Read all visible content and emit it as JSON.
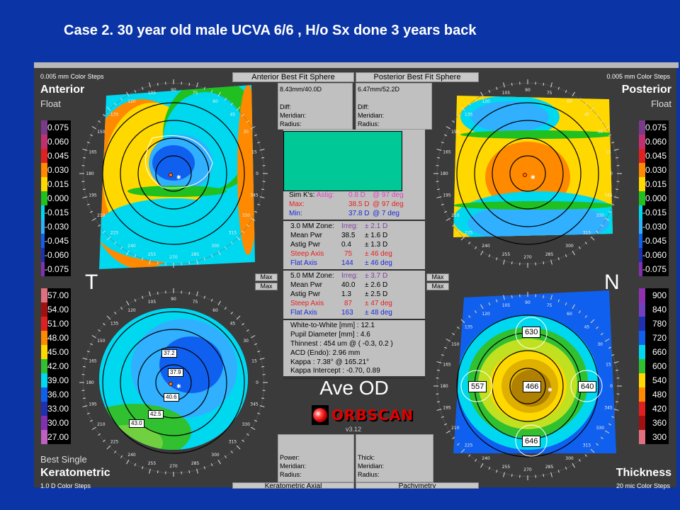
{
  "title": "Case 2. 30 year old male UCVA 6/6 , H/o Sx done 3 years back",
  "anterior": {
    "steps": "0.005 mm Color Steps",
    "name": "Anterior",
    "sub": "Float",
    "scale": [
      "0.075",
      "0.060",
      "0.045",
      "0.030",
      "0.015",
      "0.000",
      "-0.015",
      "-0.030",
      "-0.045",
      "-0.060",
      "-0.075"
    ],
    "colors": [
      "#7a3a8a",
      "#c03070",
      "#e02020",
      "#ff8a00",
      "#ffd800",
      "#20c020",
      "#00d8f0",
      "#30b0ff",
      "#1060f0",
      "#2030b0",
      "#8030b0"
    ]
  },
  "posterior": {
    "steps": "0.005 mm Color Steps",
    "name": "Posterior",
    "sub": "Float",
    "scale": [
      "0.075",
      "0.060",
      "0.045",
      "0.030",
      "0.015",
      "0.000",
      "-0.015",
      "-0.030",
      "-0.045",
      "-0.060",
      "-0.075"
    ],
    "colors": [
      "#7a3a8a",
      "#c03070",
      "#e02020",
      "#ff8a00",
      "#ffd800",
      "#20c020",
      "#00d8f0",
      "#30b0ff",
      "#1060f0",
      "#2030b0",
      "#8030b0"
    ]
  },
  "keratometric": {
    "steps": "1.0 D Color Steps",
    "name": "Keratometric",
    "sub": "Best Single",
    "scale": [
      "57.00",
      "54.00",
      "51.00",
      "48.00",
      "45.00",
      "42.00",
      "39.00",
      "36.00",
      "33.00",
      "30.00",
      "27.00"
    ],
    "colors": [
      "#e07080",
      "#a01010",
      "#e02020",
      "#ff8a00",
      "#ffd800",
      "#30c030",
      "#00d8f0",
      "#1060f0",
      "#2030b0",
      "#8030b0",
      "#c060c0"
    ],
    "labels": [
      "37.2",
      "37.9",
      "40.6",
      "42.5",
      "43.0"
    ]
  },
  "thickness": {
    "steps": "20 mic Color Steps",
    "name": "Thickness",
    "scale": [
      "900",
      "840",
      "780",
      "720",
      "660",
      "600",
      "540",
      "480",
      "420",
      "360",
      "300"
    ],
    "colors": [
      "#9030b0",
      "#7040c0",
      "#2030b0",
      "#1060f0",
      "#00d8f0",
      "#30c030",
      "#ffd800",
      "#ff8a00",
      "#e02020",
      "#a01010",
      "#e07080"
    ],
    "labels": [
      "630",
      "557",
      "466",
      "640",
      "646"
    ]
  },
  "side_labels": {
    "temporal": "T",
    "nasal": "N"
  },
  "dial_labels": [
    "0",
    "15",
    "30",
    "45",
    "60",
    "75",
    "90",
    "105",
    "120",
    "135",
    "150",
    "165",
    "180",
    "195",
    "210",
    "225",
    "240",
    "255",
    "270",
    "285",
    "300",
    "315",
    "330",
    "345"
  ],
  "best_fit": {
    "anterior_label": "Anterior Best Fit Sphere",
    "posterior_label": "Posterior Best Fit Sphere",
    "anterior_value": "8.43mm/40.0D",
    "posterior_value": "6.47mm/52.2D",
    "diff": "Diff:",
    "meridian": "Meridian:",
    "radius": "Radius:"
  },
  "center_panel": {
    "simk": {
      "label": "Sim K's:",
      "astig": "Astig:",
      "astig_val": "0.8 D",
      "astig_deg": "@ 97 deg",
      "max": "Max:",
      "max_val": "38.5 D",
      "max_deg": "@ 97 deg",
      "min": "Min:",
      "min_val": "37.8 D",
      "min_deg": "@ 7 deg"
    },
    "zone3": {
      "label": "3.0 MM Zone:",
      "irreg": "Irreg:",
      "irreg_val": "± 2.1 D",
      "mean": "Mean Pwr",
      "mean_val": "38.5",
      "mean_sd": "± 1.6 D",
      "astig": "Astig Pwr",
      "astig_val": "0.4",
      "astig_sd": "± 1.3 D",
      "steep": "Steep Axis",
      "steep_val": "75",
      "steep_sd": "± 46 deg",
      "flat": "Flat Axis",
      "flat_val": "144",
      "flat_sd": "± 46 deg"
    },
    "zone5": {
      "label": "5.0 MM Zone:",
      "irreg": "Irreg:",
      "irreg_val": "± 3.7 D",
      "mean": "Mean Pwr",
      "mean_val": "40.0",
      "mean_sd": "± 2.6 D",
      "astig": "Astig Pwr",
      "astig_val": "1.3",
      "astig_sd": "± 2.5 D",
      "steep": "Steep Axis",
      "steep_val": "87",
      "steep_sd": "± 47 deg",
      "flat": "Flat Axis",
      "flat_val": "163",
      "flat_sd": "± 48 deg"
    },
    "misc": [
      "White-to-White [mm] : 12.1",
      "Pupil Diameter [mm] :  4.6",
      "Thinnest : 454 um @ ( -0.3, 0.2 )",
      "ACD (Endo): 2.96 mm",
      "Kappa : 7.38° @ 165.21°",
      "Kappa Intercept : -0.70, 0.89"
    ]
  },
  "max_label": "Max",
  "eye_label": "Ave OD",
  "brand": "ORBSCAN",
  "version": "v3.12",
  "bottom_boxes": {
    "left": [
      "Power:",
      "Meridian:",
      "Radius:"
    ],
    "right": [
      "Thick:",
      "Meridian:",
      "Radius:"
    ]
  },
  "bottom_tabs": {
    "left": "Keratometric Axial",
    "right": "Pachymetry"
  }
}
